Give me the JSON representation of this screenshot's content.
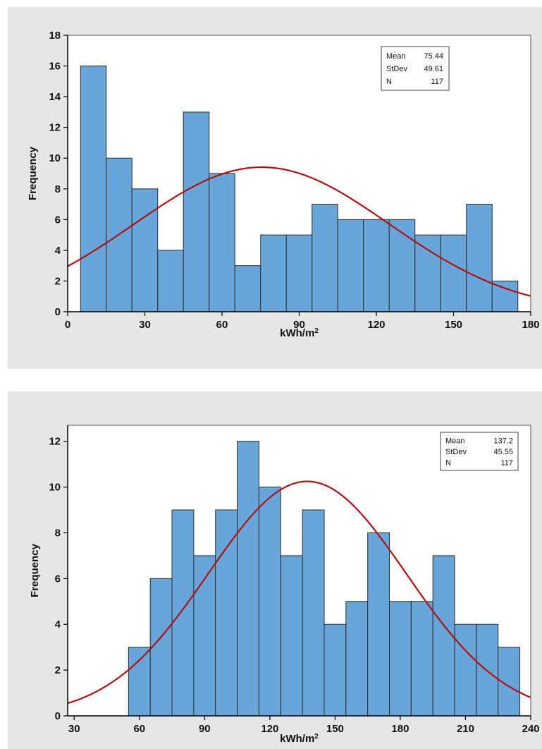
{
  "chart_data": [
    {
      "type": "bar",
      "bin_width": 10,
      "bins": [
        {
          "start": 5,
          "end": 15,
          "count": 16
        },
        {
          "start": 15,
          "end": 25,
          "count": 10
        },
        {
          "start": 25,
          "end": 35,
          "count": 8
        },
        {
          "start": 35,
          "end": 45,
          "count": 4
        },
        {
          "start": 45,
          "end": 55,
          "count": 13
        },
        {
          "start": 55,
          "end": 65,
          "count": 9
        },
        {
          "start": 65,
          "end": 75,
          "count": 3
        },
        {
          "start": 75,
          "end": 85,
          "count": 5
        },
        {
          "start": 85,
          "end": 95,
          "count": 5
        },
        {
          "start": 95,
          "end": 105,
          "count": 7
        },
        {
          "start": 105,
          "end": 115,
          "count": 6
        },
        {
          "start": 115,
          "end": 125,
          "count": 6
        },
        {
          "start": 125,
          "end": 135,
          "count": 6
        },
        {
          "start": 135,
          "end": 145,
          "count": 5
        },
        {
          "start": 145,
          "end": 155,
          "count": 5
        },
        {
          "start": 155,
          "end": 165,
          "count": 7
        },
        {
          "start": 165,
          "end": 175,
          "count": 2
        }
      ],
      "xlabel": "kWh/m",
      "xlabel_sup": "2",
      "ylabel": "Frequency",
      "xlim": [
        0,
        180
      ],
      "ylim": [
        0,
        18
      ],
      "xticks": [
        0,
        30,
        60,
        90,
        120,
        150,
        180
      ],
      "yticks": [
        0,
        2,
        4,
        6,
        8,
        10,
        12,
        14,
        16,
        18
      ],
      "fit_curve": {
        "type": "normal",
        "mean": 75.44,
        "stdev": 49.61,
        "n": 117
      },
      "stats": [
        {
          "label": "Mean",
          "value": "75.44"
        },
        {
          "label": "StDev",
          "value": "49.61"
        },
        {
          "label": "N",
          "value": "117"
        }
      ],
      "legend_position": "top-right",
      "colors": {
        "bar": "#68a6da",
        "bar_edge": "#2b2b2b",
        "curve": "#b01010",
        "panel": "#e6e6e6"
      }
    },
    {
      "type": "bar",
      "bin_width": 10,
      "bins": [
        {
          "start": 55,
          "end": 65,
          "count": 3
        },
        {
          "start": 65,
          "end": 75,
          "count": 6
        },
        {
          "start": 75,
          "end": 85,
          "count": 9
        },
        {
          "start": 85,
          "end": 95,
          "count": 7
        },
        {
          "start": 95,
          "end": 105,
          "count": 9
        },
        {
          "start": 105,
          "end": 115,
          "count": 12
        },
        {
          "start": 115,
          "end": 125,
          "count": 10
        },
        {
          "start": 125,
          "end": 135,
          "count": 7
        },
        {
          "start": 135,
          "end": 145,
          "count": 9
        },
        {
          "start": 145,
          "end": 155,
          "count": 4
        },
        {
          "start": 155,
          "end": 165,
          "count": 5
        },
        {
          "start": 165,
          "end": 175,
          "count": 8
        },
        {
          "start": 175,
          "end": 185,
          "count": 5
        },
        {
          "start": 185,
          "end": 195,
          "count": 5
        },
        {
          "start": 195,
          "end": 205,
          "count": 7
        },
        {
          "start": 205,
          "end": 215,
          "count": 4
        },
        {
          "start": 215,
          "end": 225,
          "count": 4
        },
        {
          "start": 225,
          "end": 235,
          "count": 3
        }
      ],
      "xlabel": "kWh/m",
      "xlabel_sup": "2",
      "ylabel": "Frequency",
      "xlim": [
        27,
        240
      ],
      "ylim": [
        0,
        12.7
      ],
      "xticks": [
        30,
        60,
        90,
        120,
        150,
        180,
        210,
        240
      ],
      "yticks": [
        0,
        2,
        4,
        6,
        8,
        10,
        12
      ],
      "fit_curve": {
        "type": "normal",
        "mean": 137.2,
        "stdev": 45.55,
        "n": 117
      },
      "stats": [
        {
          "label": "Mean",
          "value": "137.2"
        },
        {
          "label": "StDev",
          "value": "45.55"
        },
        {
          "label": "N",
          "value": "117"
        }
      ],
      "legend_position": "top-right",
      "colors": {
        "bar": "#68a6da",
        "bar_edge": "#2b2b2b",
        "curve": "#b01010",
        "panel": "#e6e6e6"
      }
    }
  ]
}
